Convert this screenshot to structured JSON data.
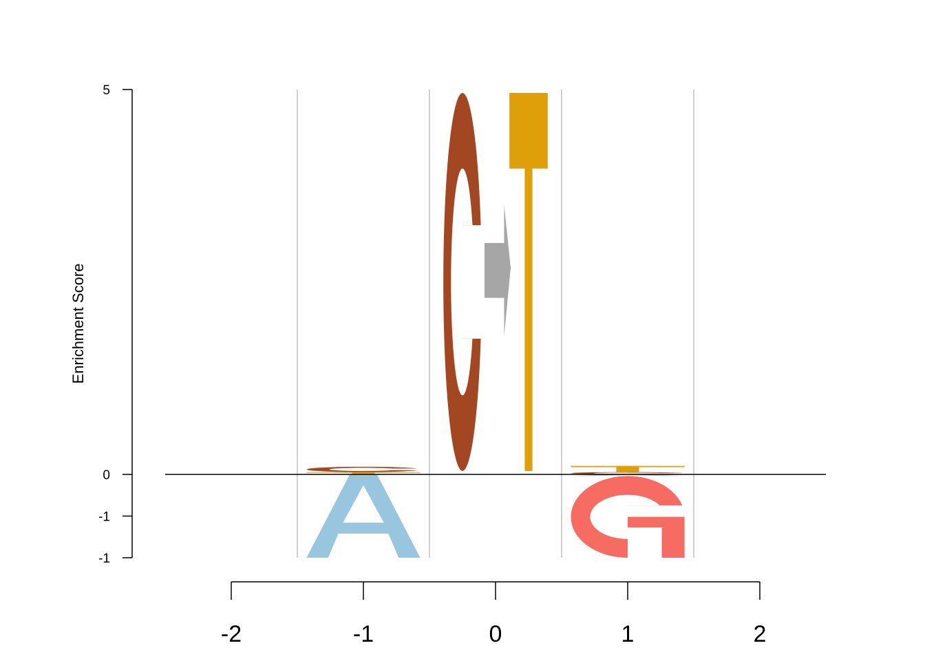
{
  "chart_data": {
    "type": "sequence-logo",
    "ylabel": "Enrichment Score",
    "yticks": [
      {
        "value": 5,
        "label": "5"
      },
      {
        "value": 0,
        "label": "0"
      },
      {
        "value": -0.5,
        "label": "-1"
      },
      {
        "value": -1,
        "label": "-1"
      }
    ],
    "xticks": [
      -2,
      -1,
      0,
      1,
      2
    ],
    "xtick_labels": [
      "-2",
      "-1",
      "0",
      "1",
      "2"
    ],
    "grid_boundaries": [
      -1.5,
      -0.5,
      0.5,
      1.5
    ],
    "ylim": [
      -1,
      5
    ],
    "xlim": [
      -2.5,
      2.5
    ],
    "colors": {
      "A": "#98c6de",
      "C": "#a34722",
      "G": "#f76c62",
      "T": "#de9f08",
      "arrow": "#a6a6a6"
    },
    "positions": [
      {
        "x": -1,
        "above": [
          {
            "glyph": "T",
            "height": 0.03
          },
          {
            "glyph": "C",
            "height": 0.07
          }
        ],
        "below": [
          {
            "glyph": "A",
            "height": 1.0
          }
        ]
      },
      {
        "x": 0,
        "arrow": {
          "height": 1.7,
          "center": 2.65
        },
        "above": [
          {
            "glyph": "C",
            "height": 5.0,
            "offset": -0.25
          },
          {
            "glyph": "T",
            "height": 5.0,
            "offset": 0.25
          }
        ],
        "below": []
      },
      {
        "x": 1,
        "above": [
          {
            "glyph": "C",
            "height": 0.03
          },
          {
            "glyph": "T",
            "height": 0.08
          }
        ],
        "below": [
          {
            "glyph": "A",
            "height": 0.02
          },
          {
            "glyph": "G",
            "height": 0.98
          }
        ]
      }
    ]
  }
}
